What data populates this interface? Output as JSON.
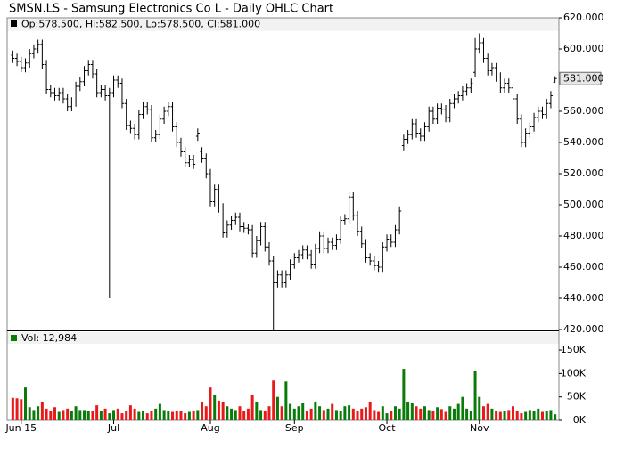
{
  "chart_data": {
    "type": "ohlc",
    "title": "SMSN.LS - Samsung Electronics Co L - Daily OHLC Chart",
    "ohlc_legend": "Op:578.500, Hi:582.500, Lo:578.500, Cl:581.000",
    "color": "#000000",
    "categories": [
      null,
      null,
      "Jun 15",
      null,
      null,
      null,
      null,
      null,
      null,
      null,
      null,
      null,
      null,
      null,
      null,
      null,
      null,
      null,
      null,
      null,
      null,
      null,
      null,
      null,
      "Jul",
      null,
      null,
      null,
      null,
      null,
      null,
      null,
      null,
      null,
      null,
      null,
      null,
      null,
      null,
      null,
      null,
      null,
      null,
      null,
      null,
      null,
      null,
      "Aug",
      null,
      null,
      null,
      null,
      null,
      null,
      null,
      null,
      null,
      null,
      null,
      null,
      null,
      null,
      null,
      null,
      null,
      null,
      null,
      "Sep",
      null,
      null,
      null,
      null,
      null,
      null,
      null,
      null,
      null,
      null,
      null,
      null,
      null,
      null,
      null,
      null,
      null,
      null,
      null,
      null,
      null,
      "Oct",
      null,
      null,
      null,
      null,
      null,
      null,
      null,
      null,
      null,
      null,
      null,
      null,
      null,
      null,
      null,
      null,
      null,
      null,
      null,
      null,
      null,
      "Nov",
      null,
      null,
      null,
      null,
      null,
      null,
      null,
      null,
      null,
      null,
      null,
      null,
      null,
      null,
      null,
      null,
      null,
      null
    ],
    "open": [
      596,
      594,
      592,
      588,
      591,
      597,
      600,
      603,
      590,
      574,
      572,
      570,
      572,
      568,
      563,
      566,
      576,
      579,
      586,
      590,
      584,
      572,
      574,
      570,
      572,
      580,
      578,
      565,
      551,
      549,
      545,
      558,
      563,
      561,
      543,
      545,
      555,
      560,
      563,
      550,
      540,
      534,
      527,
      529,
      544,
      534,
      530,
      520,
      502,
      510,
      498,
      482,
      487,
      490,
      492,
      486,
      485,
      484,
      469,
      477,
      486,
      473,
      464,
      450,
      455,
      450,
      455,
      462,
      466,
      468,
      471,
      468,
      462,
      472,
      480,
      472,
      476,
      474,
      478,
      490,
      491,
      505,
      493,
      483,
      475,
      466,
      464,
      461,
      460,
      473,
      478,
      476,
      484,
      538,
      542,
      545,
      552,
      546,
      544,
      550,
      560,
      555,
      562,
      561,
      556,
      565,
      568,
      570,
      573,
      575,
      585,
      600,
      604,
      594,
      586,
      588,
      582,
      575,
      578,
      575,
      568,
      555,
      540,
      546,
      550,
      556,
      560,
      558,
      565,
      578.5
    ],
    "high": [
      599,
      597,
      595,
      594,
      600,
      603,
      606,
      606,
      593,
      577,
      575,
      575,
      575,
      571,
      569,
      579,
      582,
      589,
      593,
      593,
      587,
      577,
      577,
      575,
      583,
      583,
      581,
      568,
      554,
      552,
      561,
      566,
      566,
      564,
      548,
      558,
      563,
      566,
      566,
      553,
      543,
      537,
      532,
      532,
      549,
      537,
      533,
      523,
      513,
      513,
      501,
      490,
      493,
      495,
      495,
      489,
      488,
      487,
      480,
      489,
      489,
      476,
      467,
      458,
      458,
      458,
      465,
      469,
      471,
      474,
      474,
      471,
      475,
      483,
      483,
      479,
      479,
      481,
      493,
      494,
      508,
      508,
      496,
      486,
      478,
      469,
      467,
      464,
      476,
      481,
      481,
      487,
      499,
      545,
      548,
      555,
      555,
      549,
      553,
      563,
      563,
      565,
      565,
      564,
      568,
      571,
      573,
      576,
      578,
      581,
      607,
      610,
      607,
      597,
      591,
      591,
      585,
      581,
      581,
      578,
      571,
      558,
      549,
      553,
      559,
      563,
      563,
      568,
      573,
      582.5
    ],
    "low": [
      591,
      589,
      585,
      585,
      588,
      594,
      597,
      587,
      571,
      569,
      567,
      567,
      565,
      560,
      560,
      563,
      573,
      576,
      583,
      581,
      569,
      569,
      567,
      440,
      569,
      575,
      562,
      548,
      546,
      542,
      542,
      555,
      558,
      540,
      540,
      542,
      552,
      557,
      547,
      537,
      531,
      524,
      524,
      523,
      541,
      527,
      517,
      499,
      499,
      495,
      479,
      479,
      484,
      487,
      483,
      482,
      481,
      466,
      466,
      474,
      470,
      461,
      420,
      447,
      447,
      447,
      452,
      459,
      463,
      465,
      465,
      459,
      459,
      469,
      469,
      469,
      471,
      471,
      475,
      487,
      488,
      490,
      480,
      472,
      463,
      461,
      458,
      457,
      457,
      470,
      473,
      473,
      481,
      535,
      539,
      542,
      543,
      541,
      541,
      547,
      552,
      552,
      558,
      553,
      553,
      562,
      565,
      567,
      570,
      572,
      582,
      597,
      591,
      583,
      583,
      579,
      572,
      572,
      572,
      565,
      552,
      537,
      537,
      543,
      547,
      553,
      555,
      555,
      562,
      578.5
    ],
    "close": [
      594,
      592,
      588,
      591,
      597,
      600,
      603,
      590,
      574,
      572,
      570,
      572,
      568,
      563,
      566,
      576,
      579,
      586,
      590,
      584,
      572,
      574,
      570,
      572,
      580,
      578,
      565,
      551,
      549,
      545,
      558,
      563,
      561,
      543,
      545,
      555,
      560,
      563,
      550,
      540,
      534,
      527,
      529,
      526,
      546,
      530,
      520,
      502,
      510,
      498,
      482,
      487,
      490,
      492,
      486,
      485,
      484,
      469,
      477,
      486,
      473,
      464,
      450,
      455,
      450,
      455,
      462,
      466,
      468,
      471,
      468,
      462,
      472,
      480,
      472,
      476,
      474,
      478,
      490,
      491,
      505,
      493,
      483,
      475,
      466,
      464,
      461,
      460,
      473,
      478,
      476,
      484,
      496,
      542,
      545,
      552,
      546,
      544,
      550,
      560,
      555,
      562,
      561,
      556,
      565,
      568,
      570,
      573,
      575,
      578,
      600,
      604,
      594,
      586,
      588,
      582,
      575,
      578,
      575,
      568,
      555,
      540,
      546,
      550,
      556,
      560,
      558,
      565,
      570,
      581
    ],
    "ylim": [
      420,
      620
    ],
    "yticks": [
      {
        "value": 420,
        "label": "420.000"
      },
      {
        "value": 440,
        "label": "440.000"
      },
      {
        "value": 460,
        "label": "460.000"
      },
      {
        "value": 480,
        "label": "480.000"
      },
      {
        "value": 500,
        "label": "500.000"
      },
      {
        "value": 520,
        "label": "520.000"
      },
      {
        "value": 540,
        "label": "540.000"
      },
      {
        "value": 560,
        "label": "560.000"
      },
      {
        "value": 600,
        "label": "600.000"
      },
      {
        "value": 620,
        "label": "620.000"
      }
    ],
    "last_label": {
      "value": 581,
      "label": "581.000"
    },
    "volume": {
      "legend": "Vol: 12,984",
      "up_color": "#0a7a0a",
      "down_color": "#e8191b",
      "flat_color": "#1a1a8c",
      "values": [
        48000,
        47000,
        45000,
        70000,
        28000,
        22000,
        30000,
        40000,
        25000,
        20000,
        28000,
        18000,
        22000,
        25000,
        20000,
        30000,
        22000,
        22000,
        20000,
        20000,
        32000,
        20000,
        25000,
        15000,
        22000,
        25000,
        15000,
        20000,
        32000,
        25000,
        18000,
        20000,
        15000,
        20000,
        25000,
        35000,
        22000,
        20000,
        18000,
        20000,
        20000,
        15000,
        18000,
        20000,
        22000,
        40000,
        30000,
        70000,
        55000,
        42000,
        40000,
        30000,
        25000,
        22000,
        30000,
        20000,
        25000,
        55000,
        40000,
        22000,
        20000,
        30000,
        85000,
        50000,
        30000,
        83000,
        35000,
        25000,
        30000,
        38000,
        20000,
        25000,
        40000,
        30000,
        22000,
        25000,
        35000,
        22000,
        20000,
        30000,
        32000,
        25000,
        20000,
        25000,
        28000,
        40000,
        22000,
        18000,
        30000,
        15000,
        20000,
        30000,
        25000,
        110000,
        40000,
        38000,
        30000,
        25000,
        30000,
        22000,
        20000,
        28000,
        24000,
        18000,
        30000,
        25000,
        35000,
        50000,
        25000,
        20000,
        105000,
        50000,
        30000,
        35000,
        25000,
        20000,
        18000,
        20000,
        22000,
        30000,
        20000,
        15000,
        18000,
        22000,
        20000,
        25000,
        18000,
        20000,
        22000,
        12984
      ],
      "ylim": [
        0,
        190000
      ],
      "yticks": [
        {
          "value": 0,
          "label": "0K"
        },
        {
          "value": 50000,
          "label": "50K"
        },
        {
          "value": 100000,
          "label": "100K"
        },
        {
          "value": 150000,
          "label": "150K"
        }
      ]
    }
  }
}
